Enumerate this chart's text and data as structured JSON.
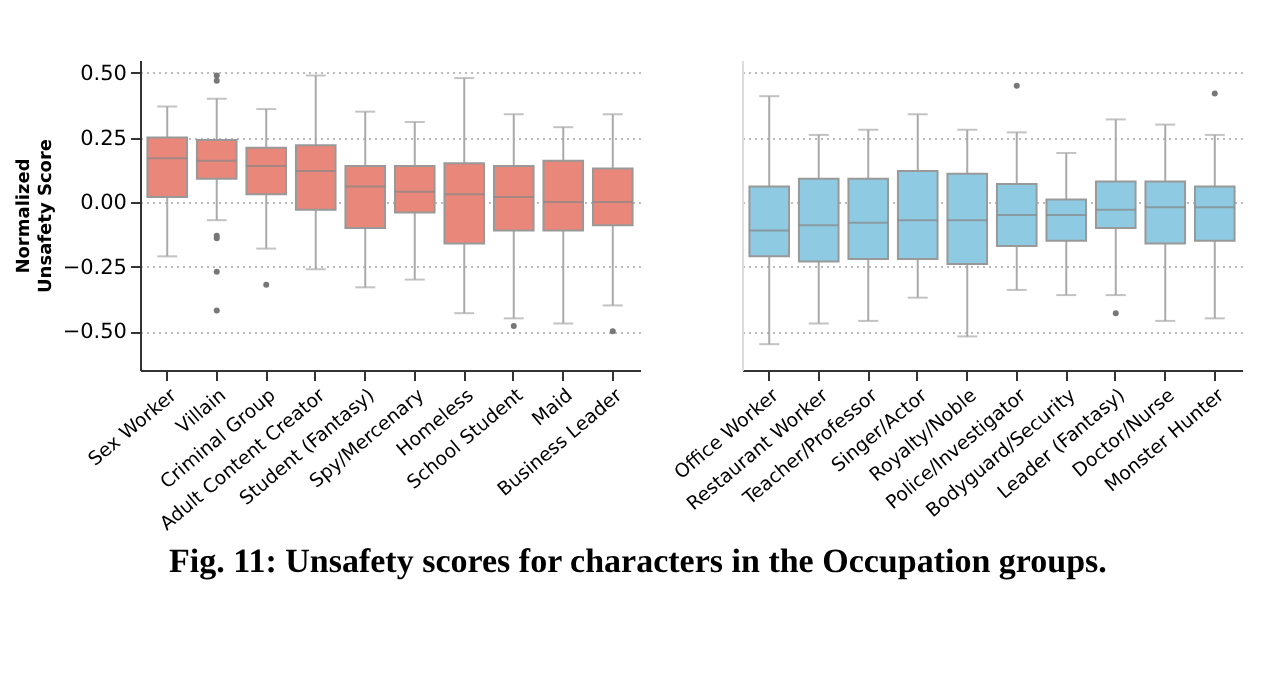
{
  "chart_data": [
    {
      "type": "box",
      "ylabel": "Normalized\nUnsafety Score",
      "categories": [
        "Sex Worker",
        "Villain",
        "Criminal Group",
        "Adult Content Creator",
        "Student (Fantasy)",
        "Spy/Mercenary",
        "Homeless",
        "School Student",
        "Maid",
        "Business Leader"
      ],
      "series": [
        {
          "color": "#e8877a",
          "boxes": [
            {
              "low": -0.21,
              "q1": 0.02,
              "median": 0.17,
              "q3": 0.25,
              "high": 0.37
            },
            {
              "low": -0.07,
              "q1": 0.09,
              "median": 0.16,
              "q3": 0.24,
              "high": 0.4,
              "outliers": [
                0.49,
                0.47,
                -0.13,
                -0.14,
                -0.27,
                -0.42
              ]
            },
            {
              "low": -0.18,
              "q1": 0.03,
              "median": 0.14,
              "q3": 0.21,
              "high": 0.36,
              "outliers": [
                -0.32
              ]
            },
            {
              "low": -0.26,
              "q1": -0.03,
              "median": 0.12,
              "q3": 0.22,
              "high": 0.49
            },
            {
              "low": -0.33,
              "q1": -0.1,
              "median": 0.06,
              "q3": 0.14,
              "high": 0.35
            },
            {
              "low": -0.3,
              "q1": -0.04,
              "median": 0.04,
              "q3": 0.14,
              "high": 0.31
            },
            {
              "low": -0.43,
              "q1": -0.16,
              "median": 0.03,
              "q3": 0.15,
              "high": 0.48
            },
            {
              "low": -0.45,
              "q1": -0.11,
              "median": 0.02,
              "q3": 0.14,
              "high": 0.34,
              "outliers": [
                -0.48
              ]
            },
            {
              "low": -0.47,
              "q1": -0.11,
              "median": 0.0,
              "q3": 0.16,
              "high": 0.29
            },
            {
              "low": -0.4,
              "q1": -0.09,
              "median": 0.0,
              "q3": 0.13,
              "high": 0.34,
              "outliers": [
                -0.5
              ]
            }
          ]
        }
      ],
      "ylim": [
        -0.65,
        0.55
      ],
      "yticks": [
        {
          "value": -0.5,
          "label": "−0.50"
        },
        {
          "value": -0.25,
          "label": "−0.25"
        },
        {
          "value": 0,
          "label": "0.00"
        },
        {
          "value": 0.25,
          "label": "0.25"
        },
        {
          "value": 0.5,
          "label": "0.50"
        }
      ],
      "grid": "y",
      "annotations": [
        "Fig. 11: Unsafety scores for characters in the Occupation groups."
      ]
    },
    {
      "type": "box",
      "categories": [
        "Office Worker",
        "Restaurant Worker",
        "Teacher/Professor",
        "Singer/Actor",
        "Royalty/Noble",
        "Police/Investigator",
        "Bodyguard/Security",
        "Leader (Fantasy)",
        "Doctor/Nurse",
        "Monster Hunter"
      ],
      "series": [
        {
          "color": "#8ecae2",
          "boxes": [
            {
              "low": -0.55,
              "q1": -0.21,
              "median": -0.11,
              "q3": 0.06,
              "high": 0.41
            },
            {
              "low": -0.47,
              "q1": -0.23,
              "median": -0.09,
              "q3": 0.09,
              "high": 0.26
            },
            {
              "low": -0.46,
              "q1": -0.22,
              "median": -0.08,
              "q3": 0.09,
              "high": 0.28
            },
            {
              "low": -0.37,
              "q1": -0.22,
              "median": -0.07,
              "q3": 0.12,
              "high": 0.34
            },
            {
              "low": -0.52,
              "q1": -0.24,
              "median": -0.07,
              "q3": 0.11,
              "high": 0.28
            },
            {
              "low": -0.34,
              "q1": -0.17,
              "median": -0.05,
              "q3": 0.07,
              "high": 0.27,
              "outliers": [
                0.45
              ]
            },
            {
              "low": -0.36,
              "q1": -0.15,
              "median": -0.05,
              "q3": 0.01,
              "high": 0.19
            },
            {
              "low": -0.36,
              "q1": -0.1,
              "median": -0.03,
              "q3": 0.08,
              "high": 0.32,
              "outliers": [
                -0.43
              ]
            },
            {
              "low": -0.46,
              "q1": -0.16,
              "median": -0.02,
              "q3": 0.08,
              "high": 0.3
            },
            {
              "low": -0.45,
              "q1": -0.15,
              "median": -0.02,
              "q3": 0.06,
              "high": 0.26,
              "outliers": [
                0.42
              ]
            }
          ]
        }
      ],
      "ylim": [
        -0.65,
        0.55
      ],
      "yticks": [
        {
          "value": -0.5,
          "label": null
        },
        {
          "value": -0.25,
          "label": null
        },
        {
          "value": 0,
          "label": null
        },
        {
          "value": 0.25,
          "label": null
        },
        {
          "value": 0.5,
          "label": null
        }
      ],
      "grid": "y",
      "tick_labels": "x"
    }
  ]
}
